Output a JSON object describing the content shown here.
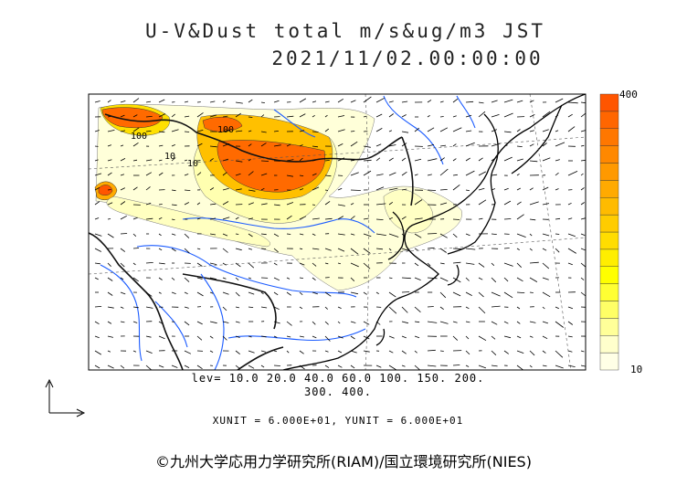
{
  "title_line1": "U-V&Dust total m/s&ug/m3 JST",
  "title_line2": "2021/11/02.00:00:00",
  "colorbar": {
    "max_label": "400",
    "min_label": "10",
    "colors": [
      "#ffffe6",
      "#ffffcc",
      "#ffff99",
      "#ffff66",
      "#ffff33",
      "#ffff00",
      "#ffee00",
      "#ffdd00",
      "#ffcc00",
      "#ffbb00",
      "#ffaa00",
      "#ff9900",
      "#ff8800",
      "#ff7700",
      "#ff6600",
      "#ff5500"
    ]
  },
  "contour_levels_line1": "lev= 10.0 20.0 40.0 60.0 100. 150. 200.",
  "contour_levels_line2": "300. 400.",
  "units_text": "XUNIT = 6.000E+01, YUNIT = 6.000E+01",
  "credit": "©九州大学応用力学研究所(RIAM)/国立環境研究所(NIES)",
  "map_labels": [
    "100",
    "100",
    "10",
    "10"
  ]
}
